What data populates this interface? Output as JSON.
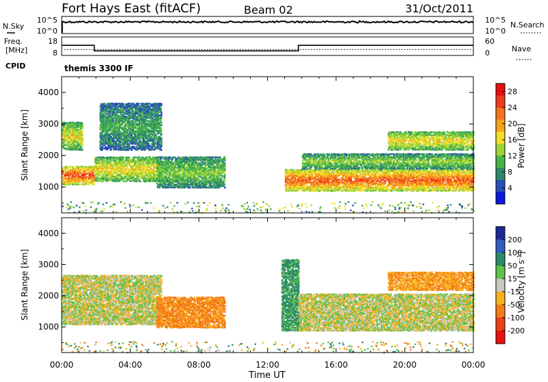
{
  "header": {
    "station": "Fort Hays East (fitACF)",
    "beam": "Beam 02",
    "date": "31/Oct/2011"
  },
  "strip_sky": {
    "left_label": "N.Sky",
    "left_ticks": [
      "10^5",
      "10^0"
    ],
    "right_ticks": [
      "10^5",
      "10^0"
    ],
    "right_label": "N.Search"
  },
  "strip_freq": {
    "left_label_1": "Freq.",
    "left_label_2": "[MHz]",
    "left_ticks": [
      "18",
      "8"
    ],
    "right_ticks": [
      "60",
      "0"
    ],
    "right_label": "Nave",
    "freq_segments": [
      {
        "start_hour": 0.0,
        "end_hour": 1.9,
        "freq_mhz": 13.5
      },
      {
        "start_hour": 1.9,
        "end_hour": 13.8,
        "freq_mhz": 10.5
      },
      {
        "start_hour": 13.8,
        "end_hour": 24.0,
        "freq_mhz": 13.5
      }
    ],
    "nave_level": 19
  },
  "cpid": {
    "label": "CPID",
    "text": "themis 3300 IF"
  },
  "chart_data": [
    {
      "type": "heatmap",
      "name": "power",
      "ylabel": "Slant Range [km]",
      "ylim": [
        180,
        4500
      ],
      "y_ticks": [
        "1000",
        "2000",
        "3000",
        "4000"
      ],
      "x_ticks": [
        "00:00",
        "04:00",
        "08:00",
        "12:00",
        "16:00",
        "20:00",
        "00:00"
      ],
      "xlim": [
        0,
        24
      ],
      "colorbar": {
        "label": "Power [dB]",
        "ticks": [
          "4",
          "8",
          "12",
          "16",
          "20",
          "24",
          "28"
        ],
        "colors": [
          "#0a18e0",
          "#2a4db8",
          "#2e8a6a",
          "#45b548",
          "#9bd339",
          "#f2df26",
          "#f7a21e",
          "#f47318",
          "#ee3b1a",
          "#e81010"
        ]
      },
      "regions": [
        {
          "t0": 0.0,
          "t1": 1.9,
          "r0": 1100,
          "r1": 1700,
          "power": 26
        },
        {
          "t0": 0.0,
          "t1": 1.2,
          "r0": 2200,
          "r1": 3100,
          "power": 17
        },
        {
          "t0": 1.9,
          "t1": 5.8,
          "r0": 1200,
          "r1": 2000,
          "power": 18
        },
        {
          "t0": 2.2,
          "t1": 5.8,
          "r0": 2200,
          "r1": 3700,
          "power": 10
        },
        {
          "t0": 5.5,
          "t1": 9.5,
          "r0": 1000,
          "r1": 2000,
          "power": 13
        },
        {
          "t0": 13.0,
          "t1": 24.0,
          "r0": 900,
          "r1": 1600,
          "power": 25
        },
        {
          "t0": 14.0,
          "t1": 24.0,
          "r0": 1600,
          "r1": 2100,
          "power": 14
        },
        {
          "t0": 19.0,
          "t1": 24.0,
          "r0": 2200,
          "r1": 2800,
          "power": 18
        }
      ]
    },
    {
      "type": "heatmap",
      "name": "velocity",
      "ylabel": "Slant Range [km]",
      "ylim": [
        180,
        4500
      ],
      "y_ticks": [
        "1000",
        "2000",
        "3000",
        "4000"
      ],
      "x_ticks": [
        "00:00",
        "04:00",
        "08:00",
        "12:00",
        "16:00",
        "20:00",
        "00:00"
      ],
      "xlabel": "Time UT",
      "xlim": [
        0,
        24
      ],
      "colorbar": {
        "label": "Velocity [m s^-1]",
        "ticks": [
          "200",
          "100",
          "50",
          "15",
          "-15",
          "-50",
          "-100",
          "-200"
        ],
        "colors": [
          "#1a2a9a",
          "#2f5fc0",
          "#2e8a6a",
          "#5ec24a",
          "#c8c8c0",
          "#f7b21e",
          "#f57a18",
          "#ee4018",
          "#e81010"
        ]
      },
      "regions": [
        {
          "t0": 0.0,
          "t1": 5.8,
          "r0": 1100,
          "r1": 2700,
          "velocity": 0
        },
        {
          "t0": 5.5,
          "t1": 9.5,
          "r0": 1000,
          "r1": 2000,
          "velocity": -40
        },
        {
          "t0": 12.8,
          "t1": 13.8,
          "r0": 900,
          "r1": 3200,
          "velocity": 40
        },
        {
          "t0": 13.8,
          "t1": 24.0,
          "r0": 900,
          "r1": 2100,
          "velocity": 0
        },
        {
          "t0": 19.0,
          "t1": 24.0,
          "r0": 2200,
          "r1": 2800,
          "velocity": -30
        }
      ]
    }
  ]
}
